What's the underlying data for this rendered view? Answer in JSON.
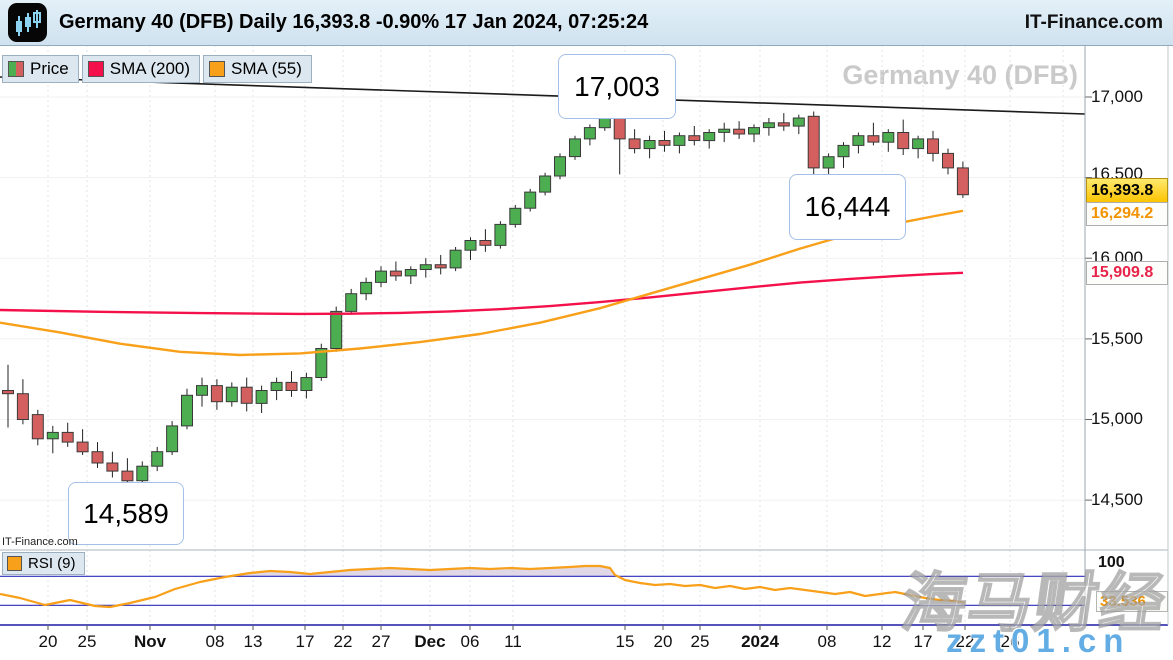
{
  "header": {
    "title": "Germany 40 (DFB) Daily 16,393.8 -0.90% 17 Jan 2024, 07:25:24",
    "brand": "IT-Finance.com",
    "icon": "candlestick-logo"
  },
  "legend": {
    "price": "Price",
    "sma200": "SMA (200)",
    "sma55": "SMA (55)"
  },
  "annotations": {
    "peak": "17,003",
    "pullback": "16,444",
    "low": "14,589"
  },
  "badges": {
    "last": "16,393.8",
    "sma55": "16,294.2",
    "sma200": "15,909.8"
  },
  "rsi_panel": {
    "legend": "RSI (9)",
    "top_label": "100",
    "badge": "33.536"
  },
  "footer_brand": "IT-Finance.com",
  "watermarks": {
    "chart": "Germany 40 (DFB)",
    "site_cn": "海马财经",
    "site_url": "zzt01.cn"
  },
  "colors": {
    "up": "#4cae50",
    "down": "#d35f5e",
    "candle_border": "#3a3a3a",
    "wick": "#222222",
    "sma200": "#f4104a",
    "sma55": "#f8a019",
    "rsi": "#f8a019",
    "rsi_band": "#2d2dbb",
    "rsi_fill": "rgba(186,168,200,0.45)",
    "trendline": "#1b1b1b",
    "badge_last_bg": "#fcc403",
    "badge_sma55_text": "#f29400",
    "badge_sma200_text": "#e8244a"
  },
  "chart_data": {
    "type": "candlestick",
    "instrument": "Germany 40 (DFB)",
    "timeframe": "Daily",
    "last_price": 16393.8,
    "change_pct": "-0.90%",
    "timestamp": "17 Jan 2024, 07:25:24",
    "ylim": [
      14240,
      17300
    ],
    "price_levels": [
      [
        17000,
        "17,000"
      ],
      [
        16500,
        "16,500"
      ],
      [
        16000,
        "16,000"
      ],
      [
        15500,
        "15,500"
      ],
      [
        15000,
        "15,000"
      ],
      [
        14500,
        "14,500"
      ]
    ],
    "x_axis": [
      [
        48,
        "20"
      ],
      [
        87,
        "25"
      ],
      [
        150,
        "Nov"
      ],
      [
        215,
        "08"
      ],
      [
        253,
        "13"
      ],
      [
        305,
        "17"
      ],
      [
        343,
        "22"
      ],
      [
        381,
        "27"
      ],
      [
        430,
        "Dec"
      ],
      [
        470,
        "06"
      ],
      [
        513,
        "11"
      ],
      [
        625,
        "15"
      ],
      [
        663,
        "20"
      ],
      [
        700,
        "25"
      ],
      [
        760,
        "2024"
      ],
      [
        827,
        "08"
      ],
      [
        882,
        "12"
      ],
      [
        923,
        "17"
      ],
      [
        965,
        "22"
      ],
      [
        1010,
        "26"
      ]
    ],
    "candles": [
      [
        15180,
        15340,
        14950,
        15160
      ],
      [
        15160,
        15250,
        14970,
        15000
      ],
      [
        15030,
        15060,
        14840,
        14880
      ],
      [
        14880,
        14960,
        14790,
        14920
      ],
      [
        14920,
        14980,
        14830,
        14860
      ],
      [
        14860,
        14940,
        14780,
        14800
      ],
      [
        14800,
        14860,
        14700,
        14730
      ],
      [
        14730,
        14800,
        14640,
        14680
      ],
      [
        14680,
        14760,
        14589,
        14620
      ],
      [
        14620,
        14740,
        14600,
        14710
      ],
      [
        14710,
        14830,
        14680,
        14800
      ],
      [
        14800,
        14990,
        14780,
        14960
      ],
      [
        14960,
        15190,
        14940,
        15150
      ],
      [
        15150,
        15260,
        15080,
        15210
      ],
      [
        15210,
        15250,
        15060,
        15110
      ],
      [
        15110,
        15230,
        15080,
        15200
      ],
      [
        15200,
        15260,
        15050,
        15100
      ],
      [
        15100,
        15210,
        15040,
        15180
      ],
      [
        15180,
        15260,
        15120,
        15230
      ],
      [
        15230,
        15300,
        15140,
        15180
      ],
      [
        15180,
        15290,
        15130,
        15260
      ],
      [
        15260,
        15470,
        15240,
        15440
      ],
      [
        15440,
        15700,
        15420,
        15670
      ],
      [
        15670,
        15810,
        15650,
        15780
      ],
      [
        15780,
        15880,
        15740,
        15850
      ],
      [
        15850,
        15950,
        15820,
        15920
      ],
      [
        15920,
        15980,
        15860,
        15890
      ],
      [
        15890,
        15950,
        15840,
        15930
      ],
      [
        15930,
        16000,
        15880,
        15960
      ],
      [
        15960,
        16020,
        15900,
        15940
      ],
      [
        15940,
        16070,
        15920,
        16050
      ],
      [
        16050,
        16130,
        15990,
        16110
      ],
      [
        16110,
        16180,
        16040,
        16080
      ],
      [
        16080,
        16230,
        16060,
        16210
      ],
      [
        16210,
        16330,
        16190,
        16310
      ],
      [
        16310,
        16430,
        16290,
        16410
      ],
      [
        16410,
        16530,
        16390,
        16510
      ],
      [
        16510,
        16650,
        16490,
        16630
      ],
      [
        16630,
        16760,
        16610,
        16740
      ],
      [
        16740,
        16830,
        16700,
        16810
      ],
      [
        16810,
        17003,
        16790,
        16940
      ],
      [
        16930,
        16950,
        16520,
        16740
      ],
      [
        16740,
        16800,
        16650,
        16680
      ],
      [
        16680,
        16760,
        16620,
        16730
      ],
      [
        16730,
        16790,
        16660,
        16700
      ],
      [
        16700,
        16780,
        16650,
        16760
      ],
      [
        16760,
        16820,
        16700,
        16730
      ],
      [
        16730,
        16800,
        16680,
        16780
      ],
      [
        16780,
        16840,
        16720,
        16800
      ],
      [
        16800,
        16850,
        16740,
        16770
      ],
      [
        16770,
        16830,
        16720,
        16810
      ],
      [
        16810,
        16870,
        16760,
        16840
      ],
      [
        16840,
        16900,
        16790,
        16820
      ],
      [
        16820,
        16890,
        16770,
        16870
      ],
      [
        16880,
        16910,
        16480,
        16560
      ],
      [
        16560,
        16650,
        16444,
        16630
      ],
      [
        16630,
        16720,
        16560,
        16700
      ],
      [
        16700,
        16780,
        16650,
        16760
      ],
      [
        16760,
        16840,
        16700,
        16720
      ],
      [
        16720,
        16800,
        16660,
        16780
      ],
      [
        16780,
        16860,
        16640,
        16680
      ],
      [
        16680,
        16760,
        16620,
        16740
      ],
      [
        16740,
        16790,
        16600,
        16650
      ],
      [
        16650,
        16680,
        16520,
        16560
      ],
      [
        16560,
        16600,
        16374,
        16393.8
      ]
    ],
    "sma200": [
      [
        0,
        15679
      ],
      [
        100,
        15668
      ],
      [
        200,
        15660
      ],
      [
        300,
        15655
      ],
      [
        350,
        15656
      ],
      [
        400,
        15661
      ],
      [
        450,
        15670
      ],
      [
        500,
        15684
      ],
      [
        550,
        15703
      ],
      [
        600,
        15728
      ],
      [
        650,
        15757
      ],
      [
        700,
        15789
      ],
      [
        750,
        15820
      ],
      [
        800,
        15849
      ],
      [
        850,
        15872
      ],
      [
        900,
        15891
      ],
      [
        930,
        15901
      ],
      [
        963,
        15909.8
      ]
    ],
    "sma55": [
      [
        0,
        15600
      ],
      [
        60,
        15540
      ],
      [
        120,
        15470
      ],
      [
        180,
        15420
      ],
      [
        240,
        15400
      ],
      [
        300,
        15410
      ],
      [
        360,
        15440
      ],
      [
        420,
        15480
      ],
      [
        480,
        15530
      ],
      [
        540,
        15600
      ],
      [
        600,
        15690
      ],
      [
        650,
        15780
      ],
      [
        700,
        15870
      ],
      [
        750,
        15960
      ],
      [
        800,
        16060
      ],
      [
        850,
        16150
      ],
      [
        900,
        16220
      ],
      [
        935,
        16262
      ],
      [
        963,
        16294.2
      ]
    ],
    "rsi": {
      "period": 9,
      "last": 33.536,
      "levels": [
        70,
        30
      ],
      "range": [
        0,
        100
      ],
      "points": [
        [
          0,
          45.5
        ],
        [
          20,
          40
        ],
        [
          45,
          30.3
        ],
        [
          70,
          37.2
        ],
        [
          95,
          29
        ],
        [
          110,
          27.6
        ],
        [
          130,
          33.1
        ],
        [
          155,
          41.4
        ],
        [
          175,
          52.4
        ],
        [
          200,
          62.1
        ],
        [
          225,
          69
        ],
        [
          250,
          74.5
        ],
        [
          270,
          77.2
        ],
        [
          290,
          75.9
        ],
        [
          310,
          73.1
        ],
        [
          330,
          75.9
        ],
        [
          350,
          78.6
        ],
        [
          370,
          80
        ],
        [
          390,
          81.4
        ],
        [
          410,
          80
        ],
        [
          430,
          78.6
        ],
        [
          450,
          80
        ],
        [
          470,
          81.4
        ],
        [
          490,
          80
        ],
        [
          510,
          81.4
        ],
        [
          530,
          80
        ],
        [
          550,
          81.4
        ],
        [
          570,
          82.8
        ],
        [
          585,
          84.1
        ],
        [
          600,
          84.1
        ],
        [
          610,
          81.4
        ],
        [
          615,
          71.7
        ],
        [
          625,
          64.8
        ],
        [
          640,
          60.7
        ],
        [
          655,
          57.9
        ],
        [
          670,
          59.3
        ],
        [
          685,
          56.6
        ],
        [
          700,
          57.9
        ],
        [
          715,
          53.8
        ],
        [
          730,
          56.6
        ],
        [
          745,
          52.4
        ],
        [
          760,
          55.2
        ],
        [
          775,
          51
        ],
        [
          790,
          53.8
        ],
        [
          805,
          51
        ],
        [
          820,
          48.3
        ],
        [
          835,
          45.5
        ],
        [
          850,
          48.3
        ],
        [
          865,
          42.8
        ],
        [
          880,
          45.5
        ],
        [
          895,
          48.3
        ],
        [
          910,
          44.1
        ],
        [
          925,
          40
        ],
        [
          940,
          37.2
        ],
        [
          955,
          35.9
        ],
        [
          965,
          33.5
        ]
      ]
    },
    "trendline": {
      "x1": 0,
      "y1": 77,
      "x2": 1085,
      "y2": 114
    },
    "annotation_values": {
      "peak": 17003,
      "pullback": 16444,
      "low": 14589
    }
  }
}
